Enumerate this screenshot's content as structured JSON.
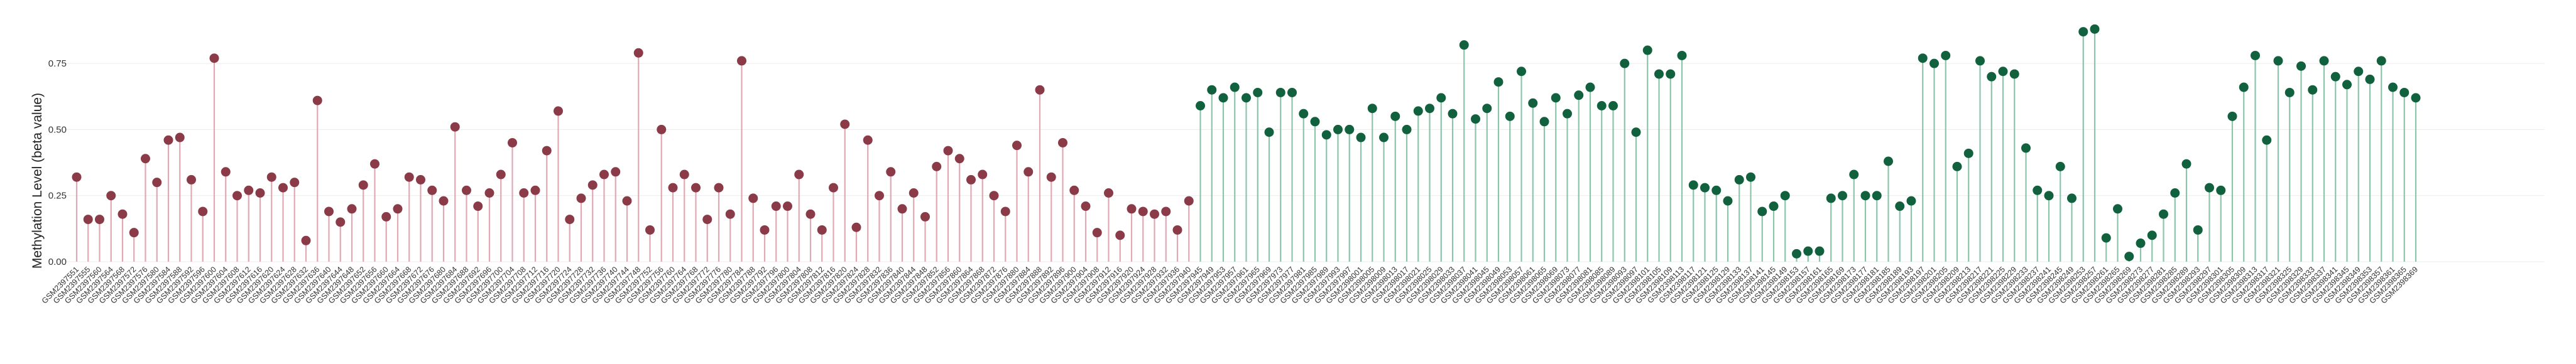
{
  "chart_data": {
    "type": "lollipop",
    "ylabel": "Methylation Level (beta value)",
    "ylim": [
      0,
      0.85
    ],
    "yticks": [
      0.0,
      0.25,
      0.5,
      0.75
    ],
    "ytick_labels": [
      "0.00",
      "0.25",
      "0.50",
      "0.75"
    ],
    "grid": true,
    "colors": {
      "group_a_marker": "#8b3a48",
      "group_a_stem": "#e0a9b4",
      "group_b_marker": "#11613f",
      "group_b_stem": "#8cc4ac",
      "grid": "#ececec"
    },
    "groups": [
      {
        "values": [
          0.32,
          0.16,
          0.16,
          0.25,
          0.18,
          0.11,
          0.39,
          0.3,
          0.46,
          0.47,
          0.31,
          0.19,
          0.77,
          0.34,
          0.25,
          0.27,
          0.26,
          0.32,
          0.28,
          0.3,
          0.08,
          0.61,
          0.19,
          0.15,
          0.2,
          0.29,
          0.37,
          0.17,
          0.2,
          0.32,
          0.31,
          0.27,
          0.23,
          0.51,
          0.27,
          0.21,
          0.26,
          0.33,
          0.45,
          0.26,
          0.27,
          0.42,
          0.57,
          0.16,
          0.24,
          0.29,
          0.33,
          0.34,
          0.23,
          0.79,
          0.12,
          0.5,
          0.28,
          0.33,
          0.28,
          0.16,
          0.28,
          0.18,
          0.76,
          0.24,
          0.12,
          0.21,
          0.21,
          0.33,
          0.18,
          0.12,
          0.28,
          0.52,
          0.13,
          0.46,
          0.25,
          0.34,
          0.2,
          0.26,
          0.17,
          0.36,
          0.42,
          0.39,
          0.31,
          0.33,
          0.25,
          0.19,
          0.44,
          0.34,
          0.65,
          0.32,
          0.45,
          0.27,
          0.21,
          0.11,
          0.26,
          0.1,
          0.2,
          0.19,
          0.18,
          0.19,
          0.12,
          0.23
        ],
        "labels": [
          "GSM2397551",
          "GSM2397555",
          "GSM2397560",
          "GSM2397564",
          "GSM2397568",
          "GSM2397572",
          "GSM2397576",
          "GSM2397580",
          "GSM2397584",
          "GSM2397588",
          "GSM2397592",
          "GSM2397596",
          "GSM2397600",
          "GSM2397604",
          "GSM2397608",
          "GSM2397612",
          "GSM2397616",
          "GSM2397620",
          "GSM2397624",
          "GSM2397628",
          "GSM2397632",
          "GSM2397636",
          "GSM2397640",
          "GSM2397644",
          "GSM2397648",
          "GSM2397652",
          "GSM2397656",
          "GSM2397660",
          "GSM2397664",
          "GSM2397668",
          "GSM2397672",
          "GSM2397676",
          "GSM2397680",
          "GSM2397684",
          "GSM2397688",
          "GSM2397692",
          "GSM2397696",
          "GSM2397700",
          "GSM2397704",
          "GSM2397708",
          "GSM2397712",
          "GSM2397716",
          "GSM2397720",
          "GSM2397724",
          "GSM2397728",
          "GSM2397732",
          "GSM2397736",
          "GSM2397740",
          "GSM2397744",
          "GSM2397748",
          "GSM2397752",
          "GSM2397756",
          "GSM2397760",
          "GSM2397764",
          "GSM2397768",
          "GSM2397772",
          "GSM2397776",
          "GSM2397780",
          "GSM2397784",
          "GSM2397788",
          "GSM2397792",
          "GSM2397796",
          "GSM2397800",
          "GSM2397804",
          "GSM2397808",
          "GSM2397812",
          "GSM2397816",
          "GSM2397820",
          "GSM2397824",
          "GSM2397828",
          "GSM2397832",
          "GSM2397836",
          "GSM2397840",
          "GSM2397844",
          "GSM2397848",
          "GSM2397852",
          "GSM2397856",
          "GSM2397860",
          "GSM2397864",
          "GSM2397868",
          "GSM2397872",
          "GSM2397876",
          "GSM2397880",
          "GSM2397884",
          "GSM2397888",
          "GSM2397892",
          "GSM2397896",
          "GSM2397900",
          "GSM2397904",
          "GSM2397908",
          "GSM2397912",
          "GSM2397916",
          "GSM2397920",
          "GSM2397924",
          "GSM2397928",
          "GSM2397932",
          "GSM2397936",
          "GSM2397940"
        ]
      },
      {
        "values": [
          0.59,
          0.65,
          0.62,
          0.66,
          0.62,
          0.64,
          0.49,
          0.64,
          0.64,
          0.56,
          0.53,
          0.48,
          0.5,
          0.5,
          0.47,
          0.58,
          0.47,
          0.55,
          0.5,
          0.57,
          0.58,
          0.62,
          0.56,
          0.82,
          0.54,
          0.58,
          0.68,
          0.55,
          0.72,
          0.6,
          0.53,
          0.62,
          0.56,
          0.63,
          0.66,
          0.59,
          0.59,
          0.75,
          0.49,
          0.8,
          0.71,
          0.71,
          0.78,
          0.29,
          0.28,
          0.27,
          0.23,
          0.31,
          0.32,
          0.19,
          0.21,
          0.25,
          0.03,
          0.04,
          0.04,
          0.24,
          0.25,
          0.33,
          0.25,
          0.25,
          0.38,
          0.21,
          0.23,
          0.77,
          0.75,
          0.78,
          0.36,
          0.41,
          0.76,
          0.7,
          0.72,
          0.71,
          0.43,
          0.27,
          0.25,
          0.36,
          0.24,
          0.87,
          0.88,
          0.09,
          0.2,
          0.02,
          0.07,
          0.1,
          0.18,
          0.26,
          0.37,
          0.12,
          0.28,
          0.27,
          0.55,
          0.66,
          0.78,
          0.46,
          0.76,
          0.64,
          0.74,
          0.65,
          0.76,
          0.7,
          0.67,
          0.72,
          0.69,
          0.76,
          0.66,
          0.64,
          0.62
        ],
        "labels": [
          "GSM2397945",
          "GSM2397949",
          "GSM2397953",
          "GSM2397957",
          "GSM2397961",
          "GSM2397965",
          "GSM2397969",
          "GSM2397973",
          "GSM2397977",
          "GSM2397981",
          "GSM2397985",
          "GSM2397989",
          "GSM2397993",
          "GSM2397997",
          "GSM2398001",
          "GSM2398005",
          "GSM2398009",
          "GSM2398013",
          "GSM2398017",
          "GSM2398021",
          "GSM2398025",
          "GSM2398029",
          "GSM2398033",
          "GSM2398037",
          "GSM2398041",
          "GSM2398045",
          "GSM2398049",
          "GSM2398053",
          "GSM2398057",
          "GSM2398061",
          "GSM2398065",
          "GSM2398069",
          "GSM2398073",
          "GSM2398077",
          "GSM2398081",
          "GSM2398085",
          "GSM2398089",
          "GSM2398093",
          "GSM2398097",
          "GSM2398101",
          "GSM2398105",
          "GSM2398109",
          "GSM2398113",
          "GSM2398117",
          "GSM2398121",
          "GSM2398125",
          "GSM2398129",
          "GSM2398133",
          "GSM2398137",
          "GSM2398141",
          "GSM2398145",
          "GSM2398149",
          "GSM2398153",
          "GSM2398157",
          "GSM2398161",
          "GSM2398165",
          "GSM2398169",
          "GSM2398173",
          "GSM2398177",
          "GSM2398181",
          "GSM2398185",
          "GSM2398189",
          "GSM2398193",
          "GSM2398197",
          "GSM2398201",
          "GSM2398205",
          "GSM2398209",
          "GSM2398213",
          "GSM2398217",
          "GSM2398221",
          "GSM2398225",
          "GSM2398229",
          "GSM2398233",
          "GSM2398237",
          "GSM2398241",
          "GSM2398245",
          "GSM2398249",
          "GSM2398253",
          "GSM2398257",
          "GSM2398261",
          "GSM2398265",
          "GSM2398269",
          "GSM2398273",
          "GSM2398277",
          "GSM2398281",
          "GSM2398285",
          "GSM2398289",
          "GSM2398293",
          "GSM2398297",
          "GSM2398301",
          "GSM2398305",
          "GSM2398309",
          "GSM2398313",
          "GSM2398317",
          "GSM2398321",
          "GSM2398325",
          "GSM2398329",
          "GSM2398333",
          "GSM2398337",
          "GSM2398341",
          "GSM2398345",
          "GSM2398349",
          "GSM2398353",
          "GSM2398357",
          "GSM2398361",
          "GSM2398365",
          "GSM2398369"
        ]
      }
    ]
  }
}
